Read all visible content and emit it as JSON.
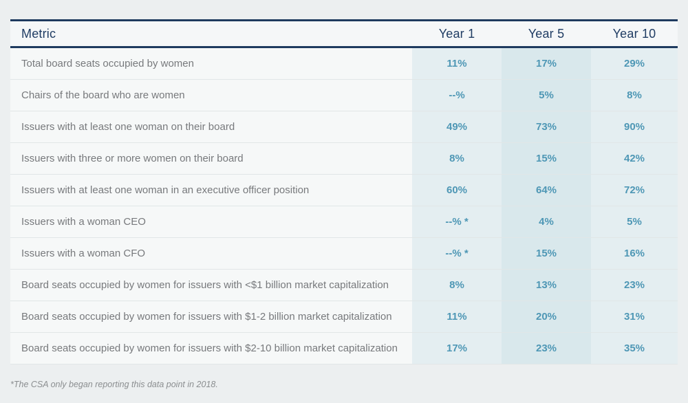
{
  "table": {
    "columns": {
      "metric": "Metric",
      "year1": "Year 1",
      "year5": "Year 5",
      "year10": "Year 10"
    },
    "rows": [
      {
        "metric": "Total board seats occupied by women",
        "year1": "11%",
        "year5": "17%",
        "year10": "29%"
      },
      {
        "metric": "Chairs of the board who are women",
        "year1": "--%",
        "year5": "5%",
        "year10": "8%"
      },
      {
        "metric": "Issuers with at least one woman on their board",
        "year1": "49%",
        "year5": "73%",
        "year10": "90%"
      },
      {
        "metric": "Issuers with three or more women on their board",
        "year1": "8%",
        "year5": "15%",
        "year10": "42%"
      },
      {
        "metric": "Issuers with at least one woman in an executive officer position",
        "year1": "60%",
        "year5": "64%",
        "year10": "72%"
      },
      {
        "metric": "Issuers with a woman CEO",
        "year1": "--% *",
        "year5": "4%",
        "year10": "5%"
      },
      {
        "metric": "Issuers with a woman CFO",
        "year1": "--% *",
        "year5": "15%",
        "year10": "16%"
      },
      {
        "metric": "Board seats occupied by women for issuers with <$1 billion market capitalization",
        "year1": "8%",
        "year5": "13%",
        "year10": "23%"
      },
      {
        "metric": "Board seats occupied by women for issuers with $1-2 billion market capitalization",
        "year1": "11%",
        "year5": "20%",
        "year10": "31%"
      },
      {
        "metric": "Board seats occupied by women for issuers with $2-10 billion market capitalization",
        "year1": "17%",
        "year5": "23%",
        "year10": "35%"
      }
    ],
    "footnote": "*The CSA only began reporting this data point in 2018.",
    "colors": {
      "navy_border": "#1e3a5f",
      "header_text": "#1f3c63",
      "metric_text": "#77797c",
      "value_text": "#4e97b5",
      "year1_col_bg": "#e4eef1",
      "year5_col_bg": "#d9e8ec",
      "year10_col_bg": "#e4eef1",
      "page_bg": "#eceff0"
    }
  }
}
